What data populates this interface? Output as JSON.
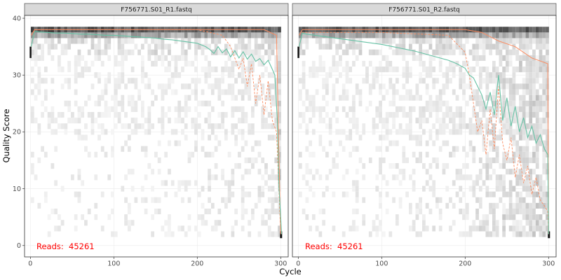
{
  "chart_data": {
    "type": "heatmap",
    "xlabel": "Cycle",
    "ylabel": "Quality Score",
    "xlim": [
      -7,
      309
    ],
    "ylim": [
      -2,
      40.5
    ],
    "x_ticks": [
      0,
      100,
      200,
      300
    ],
    "y_ticks": [
      0,
      10,
      20,
      30,
      40
    ],
    "grid": true,
    "colors": {
      "mean_line": "#66c2a5",
      "quantile_line": "#fc8d62",
      "reads_text": "#ff0000",
      "panel_border": "#333333",
      "strip_fill": "#d9d9d9"
    },
    "panels": [
      {
        "title": "F756771.S01_R1.fastq",
        "reads_label": "Reads:",
        "reads_value": "45261",
        "mean_quality": {
          "x": [
            1,
            5,
            10,
            20,
            30,
            40,
            50,
            60,
            70,
            80,
            90,
            100,
            110,
            120,
            130,
            140,
            150,
            160,
            170,
            180,
            190,
            200,
            210,
            215,
            220,
            225,
            230,
            235,
            240,
            245,
            250,
            255,
            260,
            265,
            270,
            275,
            280,
            285,
            290,
            293,
            296,
            298,
            300,
            301
          ],
          "y": [
            35.0,
            37.7,
            37.6,
            37.5,
            37.4,
            37.4,
            37.3,
            37.2,
            37.2,
            37.1,
            37.0,
            37.0,
            36.9,
            36.8,
            36.7,
            36.6,
            36.5,
            36.3,
            36.2,
            36.0,
            35.8,
            35.6,
            35.0,
            34.5,
            33.8,
            35.0,
            33.9,
            34.6,
            33.2,
            34.3,
            33.0,
            34.1,
            32.8,
            33.7,
            32.4,
            32.9,
            31.8,
            32.6,
            31.0,
            30.0,
            22.0,
            10.0,
            5.0,
            2.0
          ]
        },
        "median_quality": {
          "x": [
            1,
            5,
            100,
            200,
            240,
            260,
            280,
            295,
            298,
            300
          ],
          "y": [
            37.0,
            38.0,
            38.0,
            38.0,
            38.0,
            38.0,
            38.0,
            37.0,
            15.0,
            2.0
          ]
        },
        "quartile_25": {
          "x": [
            1,
            5,
            100,
            200,
            230,
            240,
            250,
            255,
            260,
            265,
            270,
            275,
            280,
            285,
            290,
            295,
            300
          ],
          "y": [
            35.0,
            38.0,
            38.0,
            38.0,
            37.0,
            35.0,
            31.0,
            33.0,
            28.0,
            32.0,
            25.0,
            30.0,
            23.0,
            29.0,
            22.0,
            20.0,
            2.0
          ]
        }
      },
      {
        "title": "F756771.S01_R2.fastq",
        "reads_label": "Reads:",
        "reads_value": "45261",
        "mean_quality": {
          "x": [
            1,
            5,
            10,
            20,
            30,
            40,
            50,
            60,
            70,
            80,
            90,
            100,
            110,
            120,
            130,
            140,
            150,
            160,
            170,
            180,
            190,
            200,
            205,
            210,
            215,
            220,
            225,
            230,
            235,
            240,
            245,
            250,
            255,
            260,
            265,
            270,
            275,
            280,
            285,
            290,
            295,
            299,
            300
          ],
          "y": [
            35.0,
            37.4,
            37.2,
            37.0,
            36.8,
            36.6,
            36.4,
            36.2,
            36.0,
            35.8,
            35.6,
            35.4,
            35.1,
            34.8,
            34.5,
            34.2,
            33.8,
            33.4,
            33.0,
            32.6,
            32.0,
            31.2,
            30.0,
            29.5,
            28.0,
            26.5,
            24.0,
            27.0,
            23.0,
            30.0,
            22.0,
            26.0,
            21.0,
            24.5,
            20.0,
            22.5,
            19.0,
            21.0,
            18.0,
            19.5,
            17.0,
            16.0,
            2.0
          ]
        },
        "median_quality": {
          "x": [
            1,
            5,
            100,
            200,
            220,
            240,
            260,
            280,
            299,
            300
          ],
          "y": [
            37.0,
            38.0,
            38.0,
            38.0,
            37.5,
            36.0,
            35.0,
            33.0,
            32.0,
            2.0
          ]
        },
        "quartile_25": {
          "x": [
            1,
            5,
            100,
            180,
            200,
            205,
            210,
            215,
            220,
            225,
            230,
            235,
            240,
            245,
            250,
            255,
            260,
            265,
            270,
            275,
            280,
            285,
            290,
            295,
            299,
            300
          ],
          "y": [
            35.0,
            37.5,
            37.5,
            37.0,
            34.0,
            30.0,
            25.0,
            20.0,
            22.0,
            16.0,
            24.0,
            17.0,
            28.0,
            18.0,
            15.0,
            19.0,
            12.0,
            16.0,
            11.0,
            14.0,
            9.0,
            12.0,
            8.0,
            7.0,
            6.0,
            2.0
          ]
        }
      }
    ]
  }
}
